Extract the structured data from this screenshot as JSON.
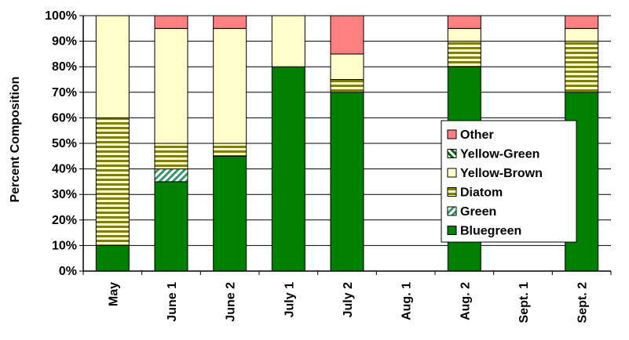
{
  "chart_data": {
    "type": "bar",
    "stacked": true,
    "categories": [
      "May",
      "June 1",
      "June 2",
      "July 1",
      "July 2",
      "Aug. 1",
      "Aug. 2",
      "Sept. 1",
      "Sept. 2"
    ],
    "series": [
      {
        "name": "Bluegreen",
        "color": "#008000",
        "pattern": "solid",
        "values": [
          10,
          35,
          45,
          80,
          70,
          0,
          80,
          0,
          70
        ]
      },
      {
        "name": "Green",
        "color": "#339966",
        "pattern": "diagonal",
        "values": [
          0,
          5,
          0,
          0,
          0,
          0,
          0,
          0,
          0
        ]
      },
      {
        "name": "Diatom",
        "color": "#808000",
        "pattern": "horizontal",
        "values": [
          50,
          10,
          5,
          0,
          5,
          0,
          10,
          0,
          20
        ]
      },
      {
        "name": "Yellow-Brown",
        "color": "#FFFFCC",
        "pattern": "solid",
        "values": [
          40,
          45,
          45,
          20,
          10,
          0,
          5,
          0,
          5
        ]
      },
      {
        "name": "Yellow-Green",
        "color": "#006600",
        "pattern": "diagonal-strong",
        "values": [
          0,
          0,
          0,
          0,
          0,
          0,
          0,
          0,
          0
        ]
      },
      {
        "name": "Other",
        "color": "#FF8080",
        "pattern": "solid",
        "values": [
          0,
          5,
          5,
          0,
          15,
          0,
          5,
          0,
          5
        ]
      }
    ],
    "legend_order": [
      "Other",
      "Yellow-Green",
      "Yellow-Brown",
      "Diatom",
      "Green",
      "Bluegreen"
    ],
    "ylabel": "Percent Composition",
    "ylim": [
      0,
      100
    ],
    "yticks": [
      "0%",
      "10%",
      "20%",
      "30%",
      "40%",
      "50%",
      "60%",
      "70%",
      "80%",
      "90%",
      "100%"
    ],
    "grid": true,
    "legend_position": "center-right"
  }
}
